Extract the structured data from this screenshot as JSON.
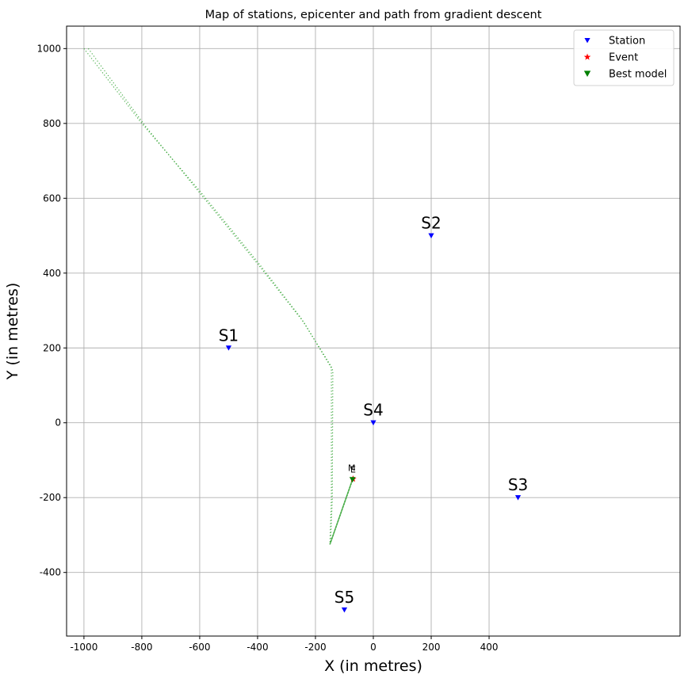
{
  "chart_data": {
    "type": "scatter",
    "title": "Map of stations, epicenter and path from gradient descent",
    "xlabel": "X (in metres)",
    "ylabel": "Y (in metres)",
    "xlim": [
      -1060,
      1060
    ],
    "ylim": [
      -570,
      1060
    ],
    "xticks": [
      -1000,
      -800,
      -600,
      -400,
      -200,
      0,
      200,
      400
    ],
    "yticks": [
      -400,
      -200,
      0,
      200,
      400,
      600,
      800,
      1000
    ],
    "grid": true,
    "legend_position": "top-right",
    "legend": [
      "Station",
      "Event",
      "Best model"
    ],
    "colors": {
      "station": "#0000ff",
      "event": "#ff0000",
      "best_model": "#008000",
      "path": "#2ca02c",
      "grid": "#b0b0b0"
    },
    "stations": [
      {
        "name": "S1",
        "x": -500,
        "y": 200
      },
      {
        "name": "S2",
        "x": 200,
        "y": 500
      },
      {
        "name": "S3",
        "x": 500,
        "y": -200
      },
      {
        "name": "S4",
        "x": 0,
        "y": 0
      },
      {
        "name": "S5",
        "x": -100,
        "y": -500
      }
    ],
    "event": {
      "label": "E",
      "x": -70,
      "y": -150
    },
    "best_model": {
      "label": "M",
      "x": -72,
      "y": -152
    },
    "path": {
      "line_a": [
        [
          -1000,
          1000
        ],
        [
          -800,
          800
        ],
        [
          -600,
          620
        ],
        [
          -400,
          430
        ],
        [
          -250,
          280
        ],
        [
          -145,
          150
        ],
        [
          -145,
          -200
        ],
        [
          -150,
          -325
        ],
        [
          -72,
          -152
        ]
      ],
      "line_b": [
        [
          -985,
          1000
        ],
        [
          -790,
          795
        ],
        [
          -590,
          605
        ],
        [
          -395,
          420
        ],
        [
          -240,
          268
        ],
        [
          -140,
          140
        ],
        [
          -142,
          -205
        ],
        [
          -148,
          -320
        ],
        [
          -70,
          -150
        ]
      ]
    }
  }
}
